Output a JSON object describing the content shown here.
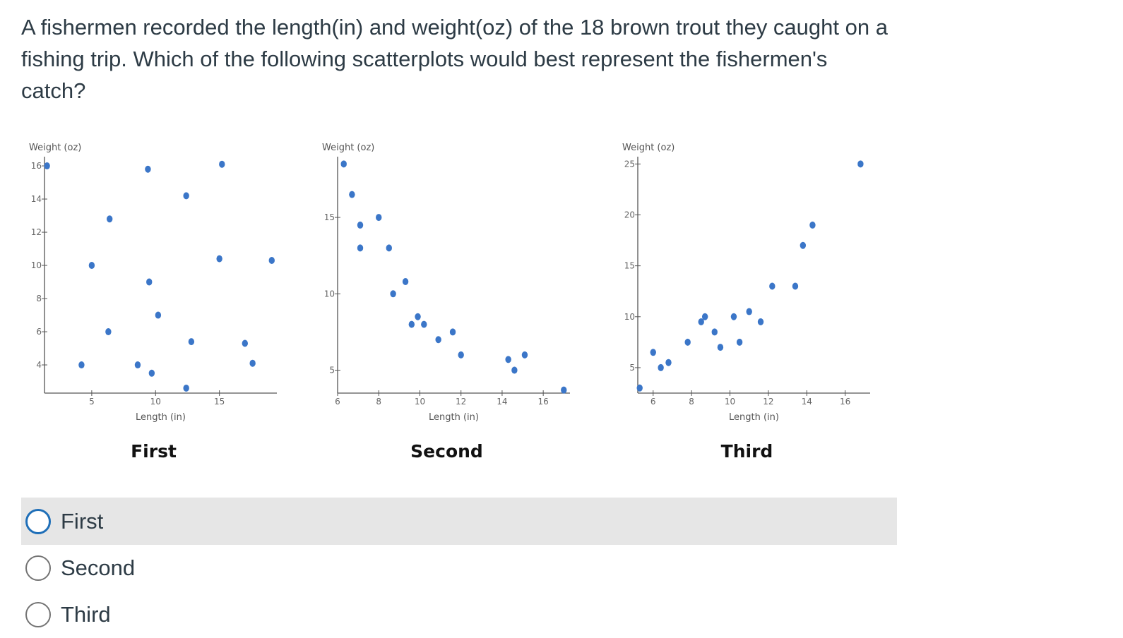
{
  "question": {
    "text": "A fishermen recorded the length(in) and weight(oz) of the 18 brown trout they caught on a fishing trip.  Which of the following scatterplots would best represent the fishermen's catch?"
  },
  "answers": [
    {
      "label": "First",
      "selected": false,
      "highlighted": true
    },
    {
      "label": "Second",
      "selected": false,
      "highlighted": false
    },
    {
      "label": "Third",
      "selected": false,
      "highlighted": false
    }
  ],
  "colors": {
    "point": "#3b76c8",
    "focus_ring": "#1f6fb8"
  },
  "chart_data": [
    {
      "type": "scatter",
      "caption": "First",
      "xlabel": "Length (in)",
      "ylabel": "Weight (oz)",
      "xlim": [
        1.3,
        19.5
      ],
      "ylim": [
        2.3,
        16.3
      ],
      "xticks": [
        5,
        10,
        15
      ],
      "yticks": [
        4,
        6,
        8,
        10,
        12,
        14,
        16
      ],
      "points": [
        [
          1.5,
          16
        ],
        [
          4.2,
          4
        ],
        [
          5.0,
          10
        ],
        [
          6.3,
          6
        ],
        [
          6.4,
          12.8
        ],
        [
          8.6,
          4
        ],
        [
          9.4,
          15.8
        ],
        [
          9.5,
          9
        ],
        [
          9.7,
          3.5
        ],
        [
          10.2,
          7
        ],
        [
          12.4,
          14.2
        ],
        [
          12.4,
          2.6
        ],
        [
          12.8,
          5.4
        ],
        [
          15.0,
          10.4
        ],
        [
          15.2,
          16.1
        ],
        [
          17.0,
          5.3
        ],
        [
          17.6,
          4.1
        ],
        [
          19.1,
          10.3
        ]
      ]
    },
    {
      "type": "scatter",
      "caption": "Second",
      "xlabel": "Length (in)",
      "ylabel": "Weight (oz)",
      "xlim": [
        6,
        17.3
      ],
      "ylim": [
        3.5,
        18.7
      ],
      "xticks": [
        6,
        8,
        10,
        12,
        14,
        16
      ],
      "yticks": [
        5,
        10,
        15
      ],
      "points": [
        [
          6.3,
          18.5
        ],
        [
          6.7,
          16.5
        ],
        [
          7.1,
          14.5
        ],
        [
          7.1,
          13
        ],
        [
          8.0,
          15
        ],
        [
          8.5,
          13
        ],
        [
          8.7,
          10
        ],
        [
          9.3,
          10.8
        ],
        [
          9.6,
          8
        ],
        [
          9.9,
          8.5
        ],
        [
          10.2,
          8
        ],
        [
          10.9,
          7
        ],
        [
          11.6,
          7.5
        ],
        [
          12.0,
          6
        ],
        [
          14.3,
          5.7
        ],
        [
          14.6,
          5
        ],
        [
          15.1,
          6
        ],
        [
          17.0,
          3.7
        ]
      ]
    },
    {
      "type": "scatter",
      "caption": "Third",
      "xlabel": "Length (in)",
      "ylabel": "Weight (oz)",
      "xlim": [
        5.2,
        17.3
      ],
      "ylim": [
        2.5,
        25.3
      ],
      "xticks": [
        6,
        8,
        10,
        12,
        14,
        16
      ],
      "yticks": [
        5,
        10,
        15,
        20,
        25
      ],
      "points": [
        [
          5.3,
          3
        ],
        [
          6.0,
          6.5
        ],
        [
          6.4,
          5
        ],
        [
          6.8,
          5.5
        ],
        [
          7.8,
          7.5
        ],
        [
          8.5,
          9.5
        ],
        [
          8.7,
          10
        ],
        [
          9.2,
          8.5
        ],
        [
          9.5,
          7
        ],
        [
          10.2,
          10
        ],
        [
          10.5,
          7.5
        ],
        [
          11.0,
          10.5
        ],
        [
          11.6,
          9.5
        ],
        [
          12.2,
          13
        ],
        [
          13.4,
          13
        ],
        [
          13.8,
          17
        ],
        [
          14.3,
          19
        ],
        [
          16.8,
          25
        ]
      ]
    }
  ]
}
